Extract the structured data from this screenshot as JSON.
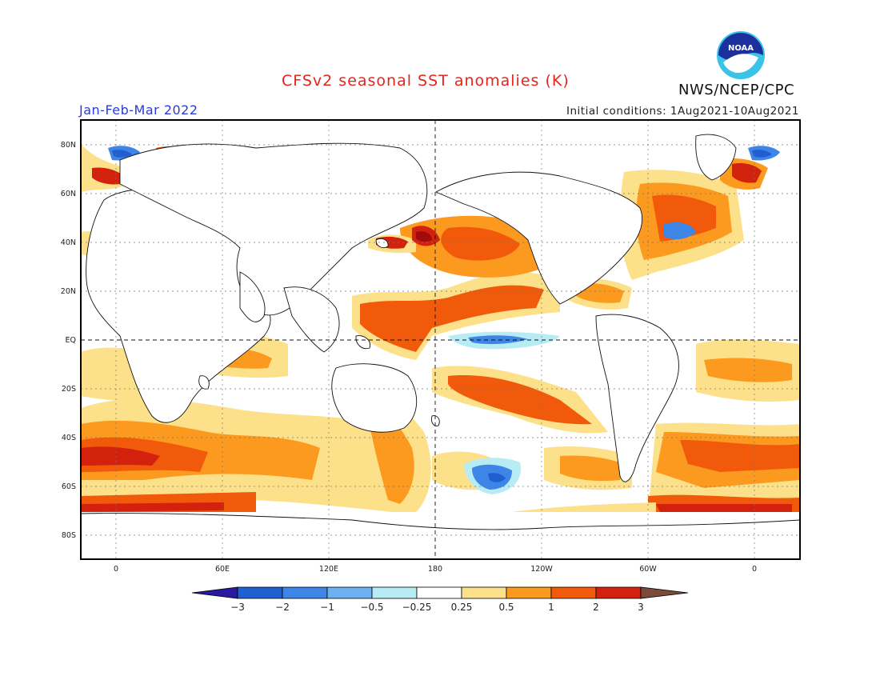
{
  "title": "CFSv2 seasonal SST anomalies (K)",
  "season": "Jan-Feb-Mar 2022",
  "initial_conditions": "Initial conditions: 1Aug2021-10Aug2021",
  "agency": "NWS/NCEP/CPC",
  "logo_text": "NOAA",
  "colors": {
    "title": "#e8231b",
    "season": "#2a3bd6",
    "neg_3": "#2a1aa0",
    "neg_2": "#1f5fd1",
    "neg_1": "#3d86e8",
    "neg_05": "#6eb1f2",
    "neg_025": "#b8ecf5",
    "neutral": "#ffffff",
    "pos_025": "#fde08a",
    "pos_05": "#fb9a1e",
    "pos_1": "#f05a0a",
    "pos_2": "#d2210c",
    "pos_3": "#a10b0b",
    "above_3": "#7a4a3a"
  },
  "latitude_labels": [
    "80N",
    "60N",
    "40N",
    "20N",
    "EQ",
    "20S",
    "40S",
    "60S",
    "80S"
  ],
  "longitude_labels": [
    "0",
    "60E",
    "120E",
    "180",
    "120W",
    "60W",
    "0"
  ],
  "colorbar": {
    "unit": "K",
    "tick_labels": [
      "−3",
      "−2",
      "−1",
      "−0.5",
      "−0.25",
      "0.25",
      "0.5",
      "1",
      "2",
      "3"
    ]
  }
}
